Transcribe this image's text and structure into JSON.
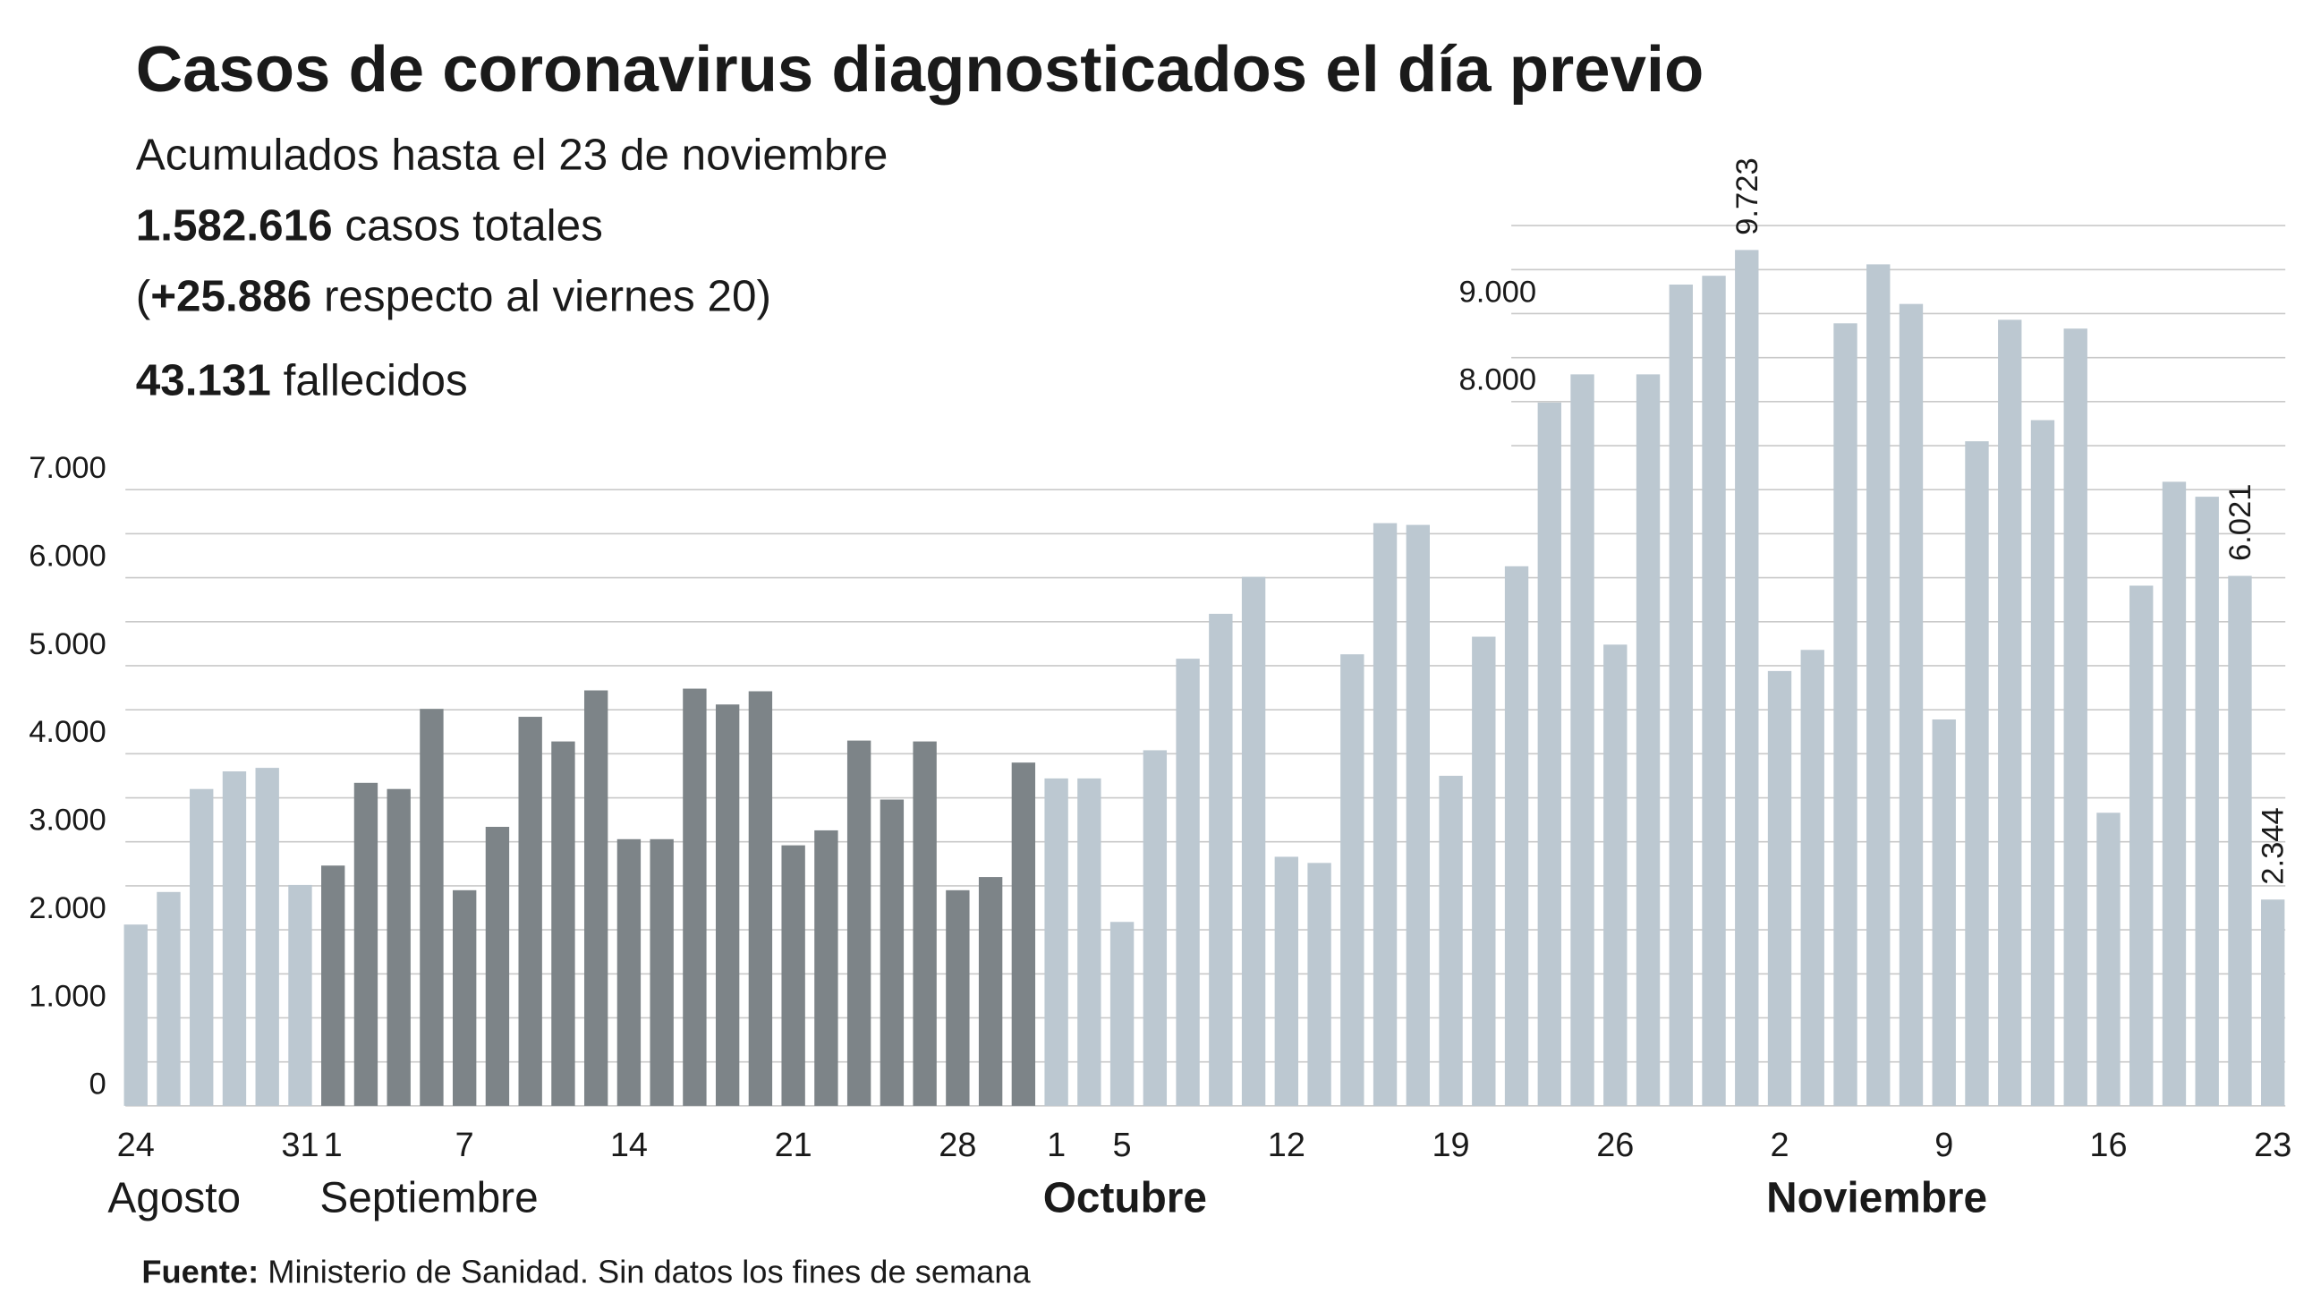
{
  "chart_data": {
    "type": "bar",
    "title": "Casos de coronavirus diagnosticados el día previo",
    "subtitle": "Acumulados hasta el 23 de noviembre",
    "info_lines": [
      [
        {
          "text": "1.582.616",
          "bold": true
        },
        {
          "text": " casos totales",
          "bold": false
        }
      ],
      [
        {
          "text": "(",
          "bold": false
        },
        {
          "text": "+25.886",
          "bold": true
        },
        {
          "text": " respecto al viernes 20)",
          "bold": false
        }
      ],
      [
        {
          "text": "43.131",
          "bold": true
        },
        {
          "text": " fallecidos",
          "bold": false
        }
      ]
    ],
    "source": [
      {
        "text": "Fuente:",
        "bold": true
      },
      {
        "text": " Ministerio de Sanidad. Sin datos los fines de semana",
        "bold": false
      }
    ],
    "categories": [
      "24",
      null,
      null,
      null,
      null,
      "31",
      "1",
      null,
      null,
      null,
      "7",
      null,
      null,
      null,
      null,
      "14",
      null,
      null,
      null,
      null,
      "21",
      null,
      null,
      null,
      null,
      "28",
      null,
      null,
      "1",
      null,
      "5",
      null,
      null,
      null,
      null,
      "12",
      null,
      null,
      null,
      null,
      "19",
      null,
      null,
      null,
      null,
      "26",
      null,
      null,
      null,
      null,
      "2",
      null,
      null,
      null,
      null,
      "9",
      null,
      null,
      null,
      null,
      "16",
      null,
      null,
      null,
      null,
      "23"
    ],
    "month_labels": [
      {
        "label": "Agosto",
        "index": 0,
        "bold": false
      },
      {
        "label": "Septiembre",
        "index": 6,
        "bold": false
      },
      {
        "label": "Octubre",
        "index": 28,
        "bold": true
      },
      {
        "label": "Noviembre",
        "index": 50,
        "bold": true
      }
    ],
    "values": [
      2060,
      2430,
      3600,
      3800,
      3840,
      2510,
      2730,
      3670,
      3600,
      4510,
      2450,
      3170,
      4420,
      4140,
      4720,
      3030,
      3030,
      4740,
      4560,
      4710,
      2960,
      3130,
      4150,
      3480,
      4140,
      2450,
      2600,
      3900,
      3720,
      3720,
      2090,
      4040,
      5080,
      5590,
      6010,
      2830,
      2760,
      5130,
      6620,
      6600,
      3750,
      5330,
      6130,
      7990,
      8310,
      5240,
      8310,
      9330,
      9430,
      9723,
      4940,
      5180,
      8890,
      9560,
      9110,
      4390,
      7550,
      8930,
      7790,
      8830,
      3330,
      5910,
      7090,
      6920,
      6021,
      2344
    ],
    "value_labels": [
      null,
      null,
      null,
      null,
      null,
      null,
      null,
      null,
      null,
      null,
      null,
      null,
      null,
      null,
      null,
      null,
      null,
      null,
      null,
      null,
      null,
      null,
      null,
      null,
      null,
      null,
      null,
      null,
      null,
      null,
      null,
      null,
      null,
      null,
      null,
      null,
      null,
      null,
      null,
      null,
      null,
      null,
      null,
      null,
      null,
      null,
      null,
      null,
      null,
      "9.723",
      null,
      null,
      null,
      null,
      null,
      null,
      null,
      null,
      null,
      null,
      null,
      null,
      null,
      null,
      "6.021",
      "2.344"
    ],
    "color": "#bcc8d1",
    "highlight_color": "#7d8488",
    "highlight_range": [
      6,
      27
    ],
    "ylim": [
      0,
      10000
    ],
    "yticks": [
      0,
      {
        "value": 1000,
        "label": "1.000"
      },
      {
        "value": 2000,
        "label": "2.000"
      },
      {
        "value": 3000,
        "label": "3.000"
      },
      {
        "value": 4000,
        "label": "4.000"
      },
      {
        "value": 5000,
        "label": "5.000"
      },
      {
        "value": 6000,
        "label": "6.000"
      },
      {
        "value": 7000,
        "label": "7.000"
      },
      {
        "value": 8000,
        "label": "8.000"
      },
      {
        "value": 9000,
        "label": "9.000"
      }
    ],
    "grid_lines": [
      500,
      1000,
      1500,
      2000,
      2500,
      3000,
      3500,
      4000,
      4500,
      5000,
      5500,
      6000,
      6500,
      7000,
      7500,
      8000,
      8500,
      9000,
      9500,
      10000
    ],
    "grid": true
  }
}
